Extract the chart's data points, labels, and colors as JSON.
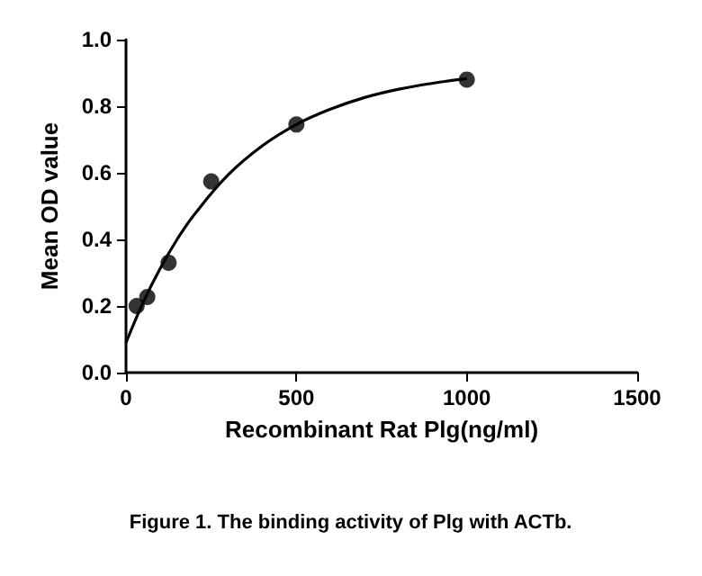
{
  "chart_data": {
    "type": "scatter",
    "xlabel": "Recombinant Rat Plg(ng/ml)",
    "ylabel": "Mean OD value",
    "annotations": [
      "Figure 1. The binding activity of Plg with ACTb."
    ],
    "series": [
      {
        "color": "#000000",
        "marker": "circle",
        "x": [
          31.25,
          62.5,
          125,
          250,
          500,
          1000
        ],
        "values": [
          0.2,
          0.227,
          0.33,
          0.574,
          0.745,
          0.88
        ]
      },
      {
        "type": "line",
        "color": "#000000",
        "marker": "none",
        "x": [
          0,
          50,
          100,
          150,
          200,
          300,
          400,
          500,
          600,
          700,
          800,
          900,
          1000
        ],
        "values": [
          0.09,
          0.21,
          0.312,
          0.4,
          0.474,
          0.594,
          0.681,
          0.745,
          0.791,
          0.826,
          0.851,
          0.869,
          0.883
        ]
      }
    ],
    "grid": false,
    "xlim": [
      0,
      1500
    ],
    "xticks": [
      0,
      500,
      1000,
      1500
    ],
    "ylim": [
      0,
      1
    ],
    "yticks": [
      {
        "value": 0,
        "label": "0.0"
      },
      {
        "value": 0.2,
        "label": "0.2"
      },
      {
        "value": 0.4,
        "label": "0.4"
      },
      {
        "value": 0.6,
        "label": "0.6"
      },
      {
        "value": 0.8,
        "label": "0.8"
      },
      {
        "value": 1,
        "label": "1.0"
      }
    ]
  }
}
